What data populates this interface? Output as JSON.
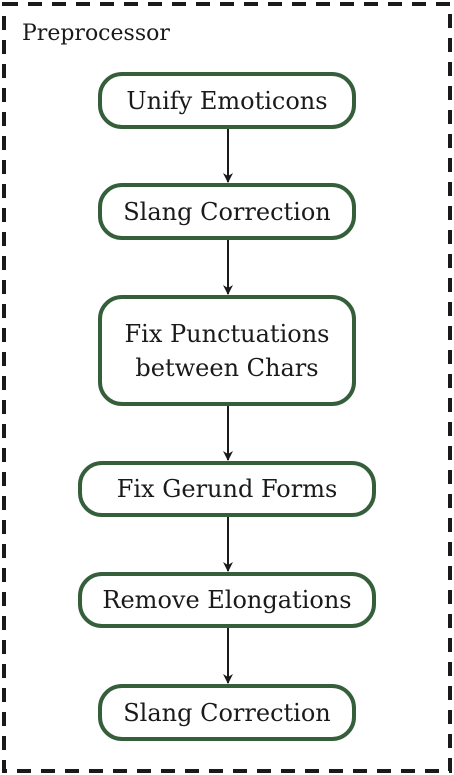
{
  "diagram": {
    "title": "Preprocessor",
    "colors": {
      "node_border": "#355e3b",
      "frame": "#1a1a1a",
      "arrow": "#1a1a1a"
    },
    "nodes": [
      {
        "id": "n1",
        "lines": [
          "Unify Emoticons"
        ]
      },
      {
        "id": "n2",
        "lines": [
          "Slang Correction"
        ]
      },
      {
        "id": "n3",
        "lines": [
          "Fix Punctuations",
          "between Chars"
        ]
      },
      {
        "id": "n4",
        "lines": [
          "Fix Gerund Forms"
        ]
      },
      {
        "id": "n5",
        "lines": [
          "Remove Elongations"
        ]
      },
      {
        "id": "n6",
        "lines": [
          "Slang Correction"
        ]
      }
    ],
    "edges": [
      {
        "from": "n1",
        "to": "n2"
      },
      {
        "from": "n2",
        "to": "n3"
      },
      {
        "from": "n3",
        "to": "n4"
      },
      {
        "from": "n4",
        "to": "n5"
      },
      {
        "from": "n5",
        "to": "n6"
      }
    ]
  }
}
